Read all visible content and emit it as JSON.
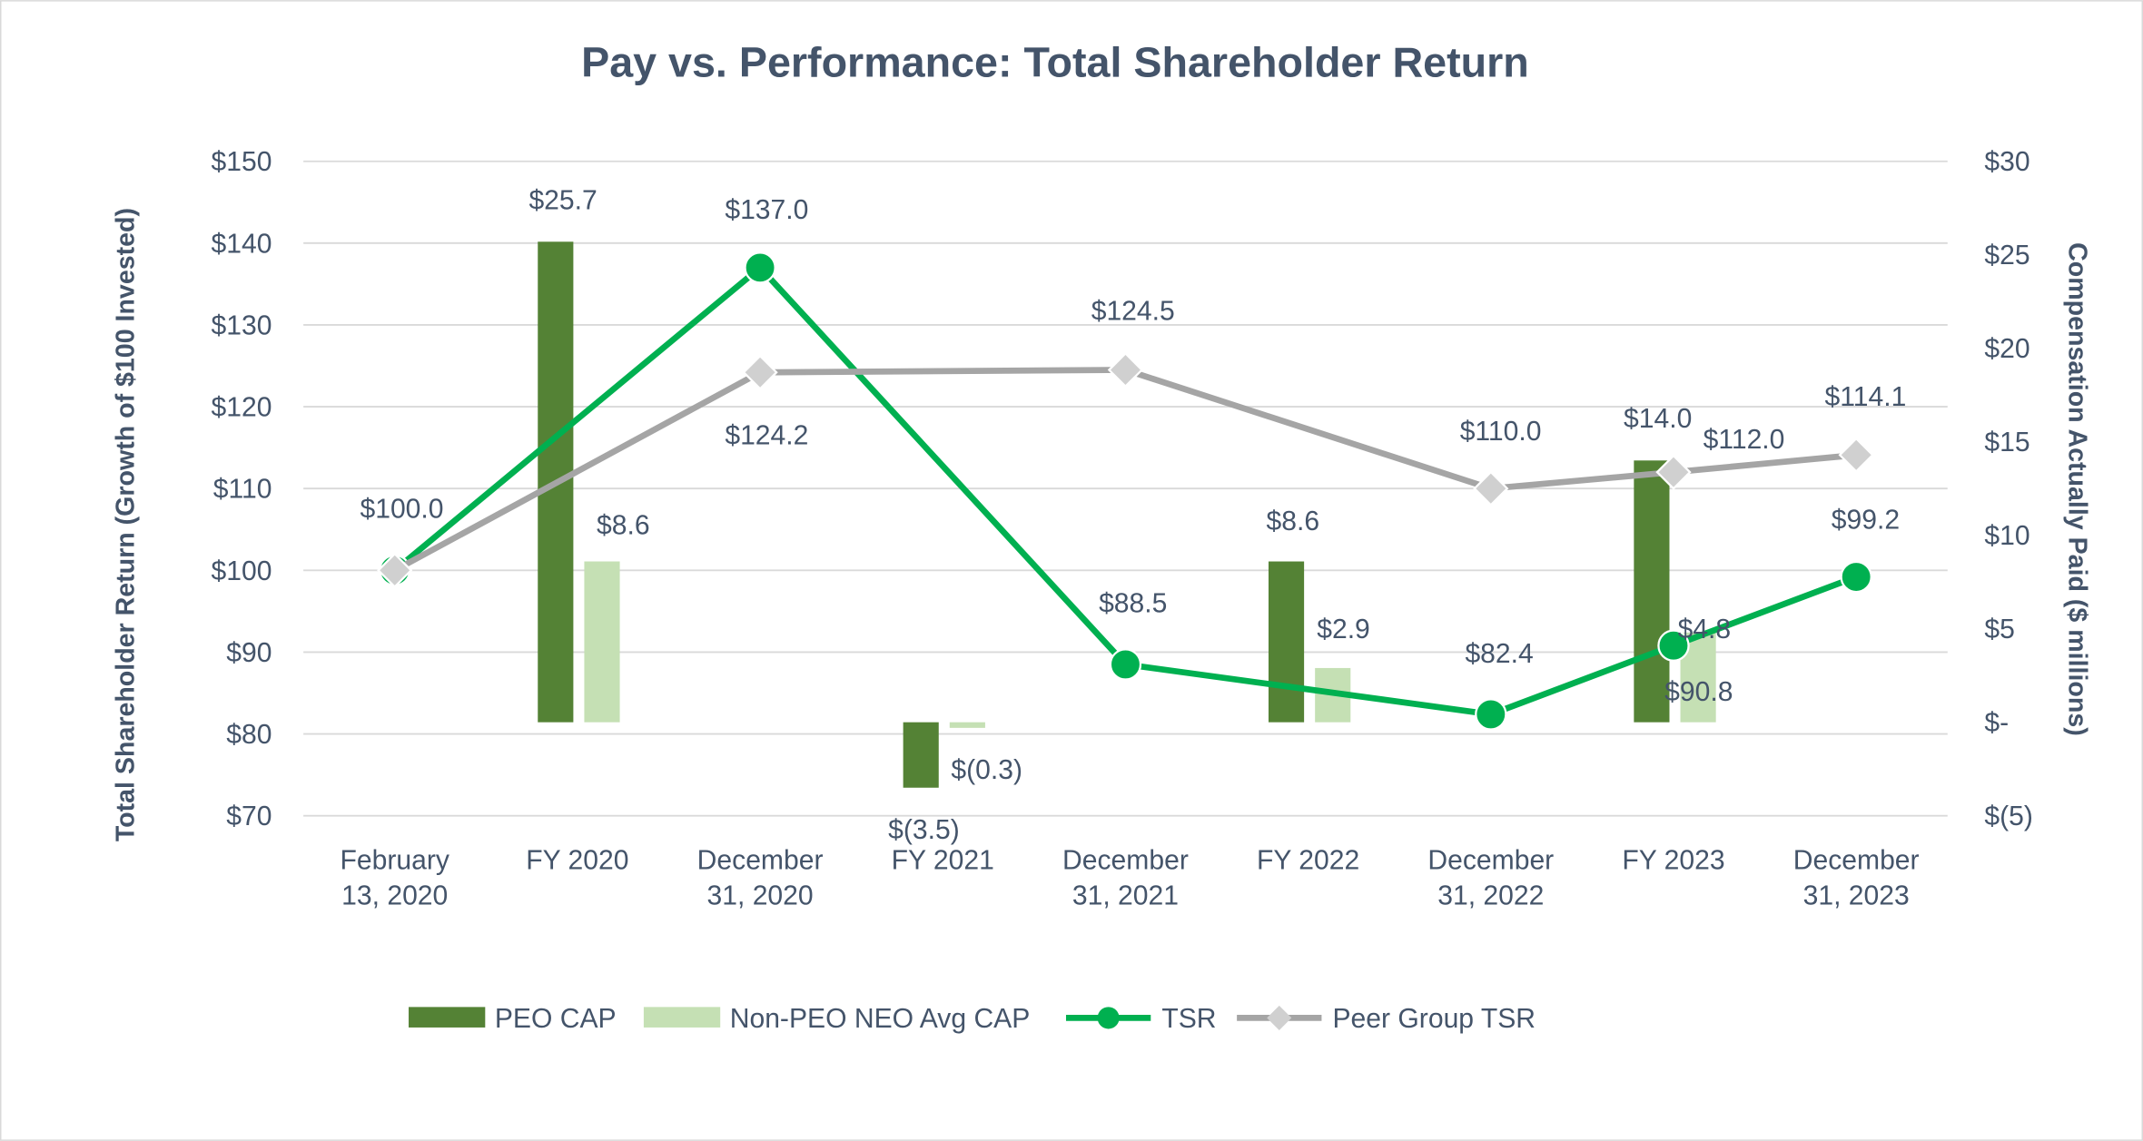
{
  "chart_data": {
    "type": "bar+line",
    "title": "Pay vs. Performance: Total Shareholder Return",
    "ylabel_left": "Total Shareholder Return (Growth of $100 Invested)",
    "ylabel_right": "Compensation Actually Paid ($ millions)",
    "ylim_left": [
      70,
      150
    ],
    "ylim_right": [
      -5,
      30
    ],
    "left_ticks": [
      "$150",
      "$140",
      "$130",
      "$120",
      "$110",
      "$100",
      "$90",
      "$80",
      "$70"
    ],
    "left_tick_values": [
      150,
      140,
      130,
      120,
      110,
      100,
      90,
      80,
      70
    ],
    "right_ticks": [
      "$30",
      "$25",
      "$20",
      "$15",
      "$10",
      "$5",
      "$-",
      "$(5)"
    ],
    "right_tick_values": [
      30,
      25,
      20,
      15,
      10,
      5,
      0,
      -5
    ],
    "categories": [
      [
        "February",
        "13, 2020"
      ],
      [
        "FY 2020"
      ],
      [
        "December",
        "31, 2020"
      ],
      [
        "FY 2021"
      ],
      [
        "December",
        "31, 2021"
      ],
      [
        "FY 2022"
      ],
      [
        "December",
        "31, 2022"
      ],
      [
        "FY 2023"
      ],
      [
        "December",
        "31, 2023"
      ]
    ],
    "grid": true,
    "legend_position": "bottom",
    "series": [
      {
        "name": "PEO CAP",
        "type": "bar",
        "axis": "right",
        "color": "#548235",
        "points": [
          {
            "cat": 1,
            "value": 25.7,
            "label": "$25.7"
          },
          {
            "cat": 3,
            "value": -3.5,
            "label": "$(3.5)"
          },
          {
            "cat": 5,
            "value": 8.6,
            "label": "$8.6"
          },
          {
            "cat": 7,
            "value": 14.0,
            "label": "$14.0"
          }
        ]
      },
      {
        "name": "Non-PEO NEO Avg CAP",
        "type": "bar",
        "axis": "right",
        "color": "#C5E0B4",
        "points": [
          {
            "cat": 1,
            "value": 8.6,
            "label": "$8.6"
          },
          {
            "cat": 3,
            "value": -0.3,
            "label": "$(0.3)"
          },
          {
            "cat": 5,
            "value": 2.9,
            "label": "$2.9"
          },
          {
            "cat": 7,
            "value": 4.8,
            "label": "$4.8"
          }
        ]
      },
      {
        "name": "TSR",
        "type": "line",
        "axis": "left",
        "color": "#00B050",
        "marker": "circle",
        "points": [
          {
            "cat": 0,
            "value": 100.0,
            "label": "$100.0"
          },
          {
            "cat": 2,
            "value": 137.0,
            "label": "$137.0"
          },
          {
            "cat": 4,
            "value": 88.5,
            "label": "$88.5"
          },
          {
            "cat": 6,
            "value": 82.4,
            "label": "$82.4"
          },
          {
            "cat": 7,
            "value": 90.8,
            "label": "$90.8"
          },
          {
            "cat": 8,
            "value": 99.2,
            "label": "$99.2"
          }
        ]
      },
      {
        "name": "Peer Group TSR",
        "type": "line",
        "axis": "left",
        "color": "#A5A5A5",
        "marker": "diamond",
        "points": [
          {
            "cat": 0,
            "value": 100.0
          },
          {
            "cat": 2,
            "value": 124.2,
            "label": "$124.2"
          },
          {
            "cat": 4,
            "value": 124.5,
            "label": "$124.5"
          },
          {
            "cat": 6,
            "value": 110.0,
            "label": "$110.0"
          },
          {
            "cat": 7,
            "value": 112.0,
            "label": "$112.0"
          },
          {
            "cat": 8,
            "value": 114.1,
            "label": "$114.1"
          }
        ]
      }
    ]
  }
}
